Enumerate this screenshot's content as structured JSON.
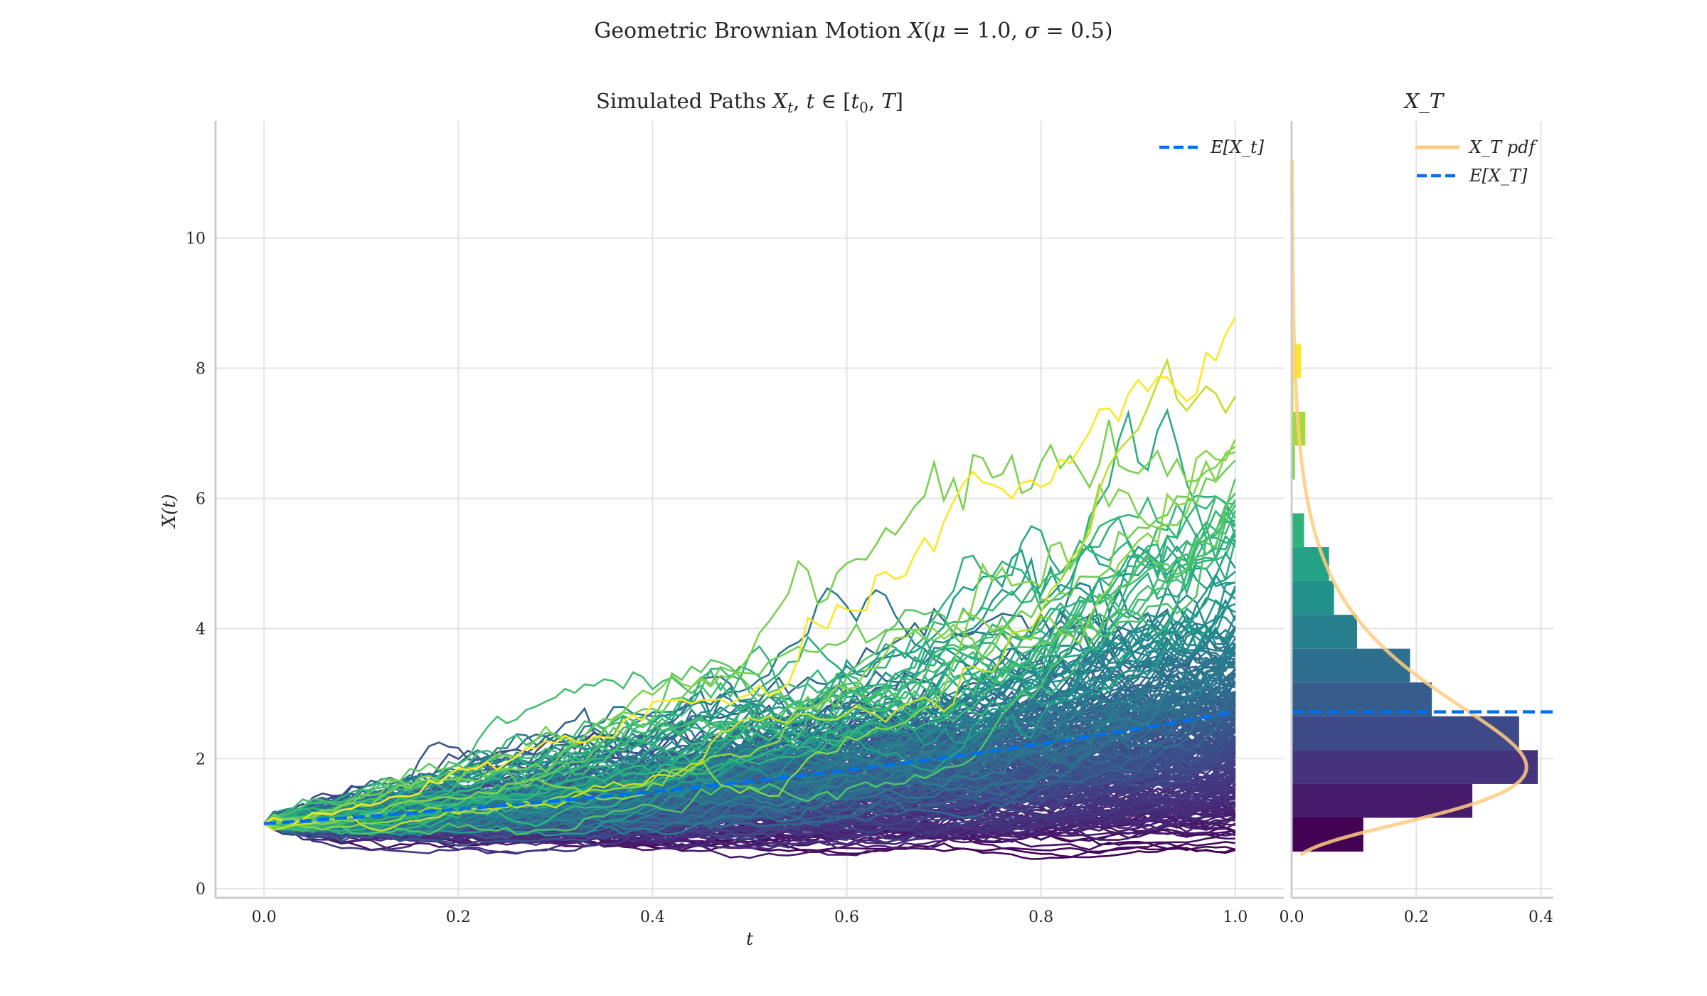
{
  "chart_data": [
    {
      "type": "line",
      "suptitle": "Geometric Brownian Motion X(μ = 1.0, σ = 0.5)",
      "title": "Simulated Paths X_t, t ∈ [t_0, T]",
      "xlabel": "t",
      "ylabel": "X(t)",
      "xlim": [
        -0.05,
        1.05
      ],
      "ylim": [
        -0.14,
        11.8
      ],
      "xticks": [
        "0.0",
        "0.2",
        "0.4",
        "0.6",
        "0.8",
        "1.0"
      ],
      "yticks": [
        "0",
        "2",
        "4",
        "6",
        "8",
        "10"
      ],
      "grid": true,
      "process": {
        "mu": 1.0,
        "sigma": 0.5,
        "x0": 1.0,
        "t0": 0.0,
        "T": 1.0
      },
      "paths_colormap": "viridis (by final value)",
      "expected_line": {
        "name": "E[X_t]",
        "formula": "exp(mu t)",
        "color": "#0070f0",
        "style": "dashed"
      },
      "legend": {
        "placement": "top-right",
        "entries": [
          "E[X_t]"
        ]
      }
    },
    {
      "type": "bar",
      "orientation": "horizontal",
      "title": "X_T",
      "xlim": [
        0,
        0.42
      ],
      "xticks": [
        "0.0",
        "0.2",
        "0.4"
      ],
      "grid": true,
      "bin_edges": [
        0.57,
        1.09,
        1.61,
        2.13,
        2.65,
        3.17,
        3.69,
        4.21,
        4.73,
        5.25,
        5.77,
        6.29,
        6.81,
        7.33,
        7.85,
        8.37
      ],
      "density": [
        0.115,
        0.29,
        0.395,
        0.365,
        0.225,
        0.19,
        0.105,
        0.068,
        0.06,
        0.02,
        0,
        0.005,
        0.022,
        0.003,
        0.015
      ],
      "pdf": {
        "name": "X_T pdf",
        "distribution": "lognormal",
        "color": "#ffcc80",
        "y_range": [
          0.52,
          11.2
        ]
      },
      "expected_value": {
        "name": "E[X_T]",
        "value": 2.718,
        "color": "#0070f0",
        "style": "dashed"
      },
      "legend": {
        "placement": "top-right",
        "entries": [
          "X_T pdf",
          "E[X_T]"
        ]
      }
    }
  ]
}
